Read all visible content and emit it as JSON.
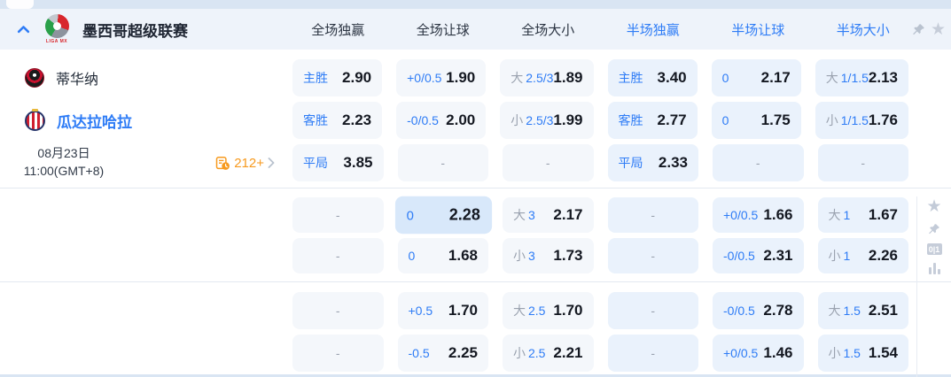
{
  "colors": {
    "accent_blue": "#2e7cf6",
    "orange": "#f79a1f",
    "full_bg": "#f4f7fb",
    "half_bg": "#eaf2fc",
    "highlight_bg": "#d8e8fa"
  },
  "league_header": {
    "name": "墨西哥超级联赛",
    "logo_text": "LIGA MX",
    "full_columns": [
      "全场独赢",
      "全场让球",
      "全场大小"
    ],
    "half_columns": [
      "半场独赢",
      "半场让球",
      "半场大小"
    ]
  },
  "match_info": {
    "home_team": "蒂华纳",
    "away_team": "瓜达拉哈拉",
    "date": "08月23日",
    "time": "11:00(GMT+8)",
    "more_markets": "212+"
  },
  "side_icons": {
    "binary_badge": "0|1"
  },
  "grid": {
    "sections": [
      {
        "rows": [
          [
            {
              "l": "主胜",
              "v": "2.90",
              "t": "full"
            },
            {
              "l": "+0/0.5",
              "v": "1.90",
              "t": "full"
            },
            {
              "p": "大",
              "l": "2.5/3",
              "v": "1.89",
              "t": "full"
            },
            {
              "l": "主胜",
              "v": "3.40",
              "t": "half"
            },
            {
              "l": "0",
              "v": "2.17",
              "t": "half"
            },
            {
              "p": "大",
              "l": "1/1.5",
              "v": "2.13",
              "t": "half"
            }
          ],
          [
            {
              "l": "客胜",
              "v": "2.23",
              "t": "full"
            },
            {
              "l": "-0/0.5",
              "v": "2.00",
              "t": "full"
            },
            {
              "p": "小",
              "l": "2.5/3",
              "v": "1.99",
              "t": "full"
            },
            {
              "l": "客胜",
              "v": "2.77",
              "t": "half"
            },
            {
              "l": "0",
              "v": "1.75",
              "t": "half"
            },
            {
              "p": "小",
              "l": "1/1.5",
              "v": "1.76",
              "t": "half"
            }
          ],
          [
            {
              "l": "平局",
              "v": "3.85",
              "t": "full"
            },
            {
              "v": "-",
              "t": "full dash"
            },
            {
              "v": "-",
              "t": "full dash"
            },
            {
              "l": "平局",
              "v": "2.33",
              "t": "half"
            },
            {
              "v": "-",
              "t": "half dash"
            },
            {
              "v": "-",
              "t": "half dash"
            }
          ]
        ]
      },
      {
        "rows": [
          [
            {
              "v": "-",
              "t": "full dash"
            },
            {
              "l": "0",
              "v": "2.28",
              "t": "full hl"
            },
            {
              "p": "大",
              "l": "3",
              "v": "2.17",
              "t": "full"
            },
            {
              "v": "-",
              "t": "half dash"
            },
            {
              "l": "+0/0.5",
              "v": "1.66",
              "t": "half"
            },
            {
              "p": "大",
              "l": "1",
              "v": "1.67",
              "t": "half"
            }
          ],
          [
            {
              "v": "-",
              "t": "full dash"
            },
            {
              "l": "0",
              "v": "1.68",
              "t": "full"
            },
            {
              "p": "小",
              "l": "3",
              "v": "1.73",
              "t": "full"
            },
            {
              "v": "-",
              "t": "half dash"
            },
            {
              "l": "-0/0.5",
              "v": "2.31",
              "t": "half"
            },
            {
              "p": "小",
              "l": "1",
              "v": "2.26",
              "t": "half"
            }
          ]
        ]
      },
      {
        "rows": [
          [
            {
              "v": "-",
              "t": "full dash"
            },
            {
              "l": "+0.5",
              "v": "1.70",
              "t": "full"
            },
            {
              "p": "大",
              "l": "2.5",
              "v": "1.70",
              "t": "full"
            },
            {
              "v": "-",
              "t": "half dash"
            },
            {
              "l": "-0/0.5",
              "v": "2.78",
              "t": "half"
            },
            {
              "p": "大",
              "l": "1.5",
              "v": "2.51",
              "t": "half"
            }
          ],
          [
            {
              "v": "-",
              "t": "full dash"
            },
            {
              "l": "-0.5",
              "v": "2.25",
              "t": "full"
            },
            {
              "p": "小",
              "l": "2.5",
              "v": "2.21",
              "t": "full"
            },
            {
              "v": "-",
              "t": "half dash"
            },
            {
              "l": "+0/0.5",
              "v": "1.46",
              "t": "half"
            },
            {
              "p": "小",
              "l": "1.5",
              "v": "1.54",
              "t": "half"
            }
          ]
        ]
      }
    ]
  }
}
